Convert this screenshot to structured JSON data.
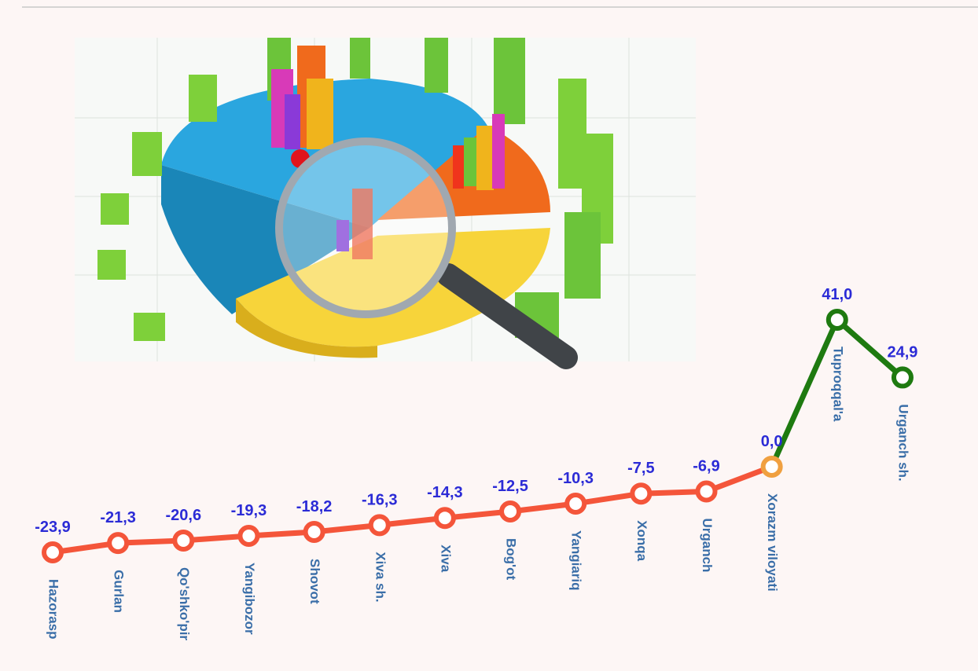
{
  "chart_data": {
    "type": "line",
    "categories": [
      "Hazorasp",
      "Gurlan",
      "Qo'shko'pir",
      "Yangibozor",
      "Shovot",
      "Xiva sh.",
      "Xiva",
      "Bog'ot",
      "Yangiariq",
      "Xonqa",
      "Urganch",
      "Xorazm viloyati",
      "Tuproqqal'a",
      "Urganch sh."
    ],
    "values": [
      -23.9,
      -21.3,
      -20.6,
      -19.3,
      -18.2,
      -16.3,
      -14.3,
      -12.5,
      -10.3,
      -7.5,
      -6.9,
      0.0,
      41.0,
      24.9
    ],
    "value_labels": [
      "-23,9",
      "-21,3",
      "-20,6",
      "-19,3",
      "-18,2",
      "-16,3",
      "-14,3",
      "-12,5",
      "-10,3",
      "-7,5",
      "-6,9",
      "0,0",
      "41,0",
      "24,9"
    ],
    "colors": {
      "negative": "#f4553a",
      "zero": "#f0a040",
      "positive": "#1e7a10"
    }
  }
}
